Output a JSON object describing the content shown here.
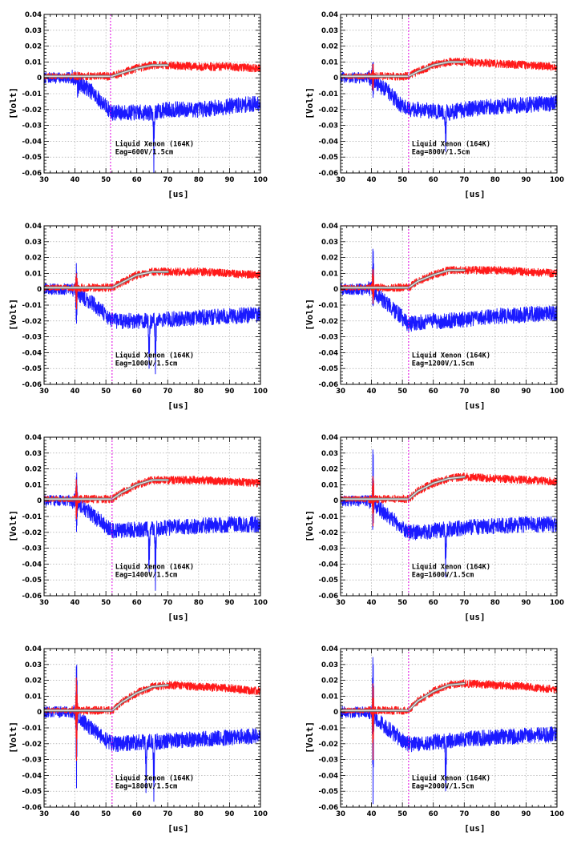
{
  "chart_data": [
    {
      "type": "line",
      "xlabel": "[us]",
      "ylabel": "[Volt]",
      "xlim": [
        30,
        100
      ],
      "ylim": [
        -0.06,
        0.04
      ],
      "grid": true,
      "x_ticks": [
        "30",
        "40",
        "50",
        "60",
        "70",
        "80",
        "90",
        "100"
      ],
      "y_ticks": [
        "0.04",
        "0.03",
        "0.02",
        "0.01",
        "0",
        "-0.01",
        "-0.02",
        "-0.03",
        "-0.04",
        "-0.05",
        "-0.06"
      ],
      "annotation": [
        "Liquid Xenon (164K)",
        "Eag=600V/1.5cm"
      ],
      "marker_x": 51.5,
      "series": [
        {
          "color": "#1a1aff",
          "x": [
            30,
            40,
            42,
            45,
            50,
            52,
            55,
            60,
            65,
            70,
            80,
            90,
            100
          ],
          "y": [
            0,
            0,
            -0.004,
            -0.008,
            -0.018,
            -0.022,
            -0.022,
            -0.022,
            -0.022,
            -0.02,
            -0.02,
            -0.018,
            -0.016
          ],
          "noise": 0.005,
          "spikes": [
            [
              41,
              -0.012,
              0.004
            ],
            [
              65.5,
              -0.035,
              -0.012
            ]
          ]
        },
        {
          "color": "#ff1a1a",
          "x": [
            30,
            52,
            55,
            60,
            65,
            70,
            80,
            90,
            100
          ],
          "y": [
            0.001,
            0.001,
            0.003,
            0.006,
            0.008,
            0.008,
            0.007,
            0.007,
            0.006
          ],
          "noise": 0.0025,
          "spikes": []
        }
      ],
      "fit": {
        "x": [
          30,
          52,
          55,
          60,
          65,
          70
        ],
        "y": [
          0.001,
          0.001,
          0.003,
          0.006,
          0.008,
          0.008
        ]
      }
    },
    {
      "type": "line",
      "xlabel": "[us]",
      "ylabel": "[Volt]",
      "xlim": [
        30,
        100
      ],
      "ylim": [
        -0.06,
        0.04
      ],
      "grid": true,
      "x_ticks": [
        "30",
        "40",
        "50",
        "60",
        "70",
        "80",
        "90",
        "100"
      ],
      "y_ticks": [
        "0.04",
        "0.03",
        "0.02",
        "0.01",
        "0",
        "-0.01",
        "-0.02",
        "-0.03",
        "-0.04",
        "-0.05",
        "-0.06"
      ],
      "annotation": [
        "Liquid Xenon (164K)",
        "Eag=800V/1.5cm"
      ],
      "marker_x": 52,
      "series": [
        {
          "color": "#1a1aff",
          "x": [
            30,
            40,
            42,
            45,
            50,
            52,
            55,
            60,
            65,
            70,
            80,
            90,
            100
          ],
          "y": [
            0,
            0,
            -0.004,
            -0.008,
            -0.018,
            -0.02,
            -0.02,
            -0.021,
            -0.022,
            -0.02,
            -0.018,
            -0.017,
            -0.016
          ],
          "noise": 0.005,
          "spikes": [
            [
              40.5,
              0.016,
              -0.012
            ],
            [
              64,
              -0.03,
              -0.01
            ]
          ]
        },
        {
          "color": "#ff1a1a",
          "x": [
            30,
            52,
            55,
            60,
            65,
            70,
            80,
            90,
            100
          ],
          "y": [
            0.001,
            0.001,
            0.004,
            0.008,
            0.01,
            0.01,
            0.009,
            0.008,
            0.007
          ],
          "noise": 0.0025,
          "spikes": [
            [
              40.5,
              0.012,
              -0.01
            ]
          ]
        }
      ],
      "fit": {
        "x": [
          30,
          52,
          55,
          60,
          65,
          70
        ],
        "y": [
          0.001,
          0.001,
          0.004,
          0.008,
          0.01,
          0.01
        ]
      }
    },
    {
      "type": "line",
      "xlabel": "[us]",
      "ylabel": "[Volt]",
      "xlim": [
        30,
        100
      ],
      "ylim": [
        -0.06,
        0.04
      ],
      "grid": true,
      "x_ticks": [
        "30",
        "40",
        "50",
        "60",
        "70",
        "80",
        "90",
        "100"
      ],
      "y_ticks": [
        "0.04",
        "0.03",
        "0.02",
        "0.01",
        "0",
        "-0.01",
        "-0.02",
        "-0.03",
        "-0.04",
        "-0.05",
        "-0.06"
      ],
      "annotation": [
        "Liquid Xenon (164K)",
        "Eag=1000V/1.5cm"
      ],
      "marker_x": 52,
      "series": [
        {
          "color": "#1a1aff",
          "x": [
            30,
            40,
            42,
            45,
            50,
            52,
            55,
            60,
            65,
            70,
            80,
            90,
            100
          ],
          "y": [
            0,
            0,
            -0.004,
            -0.008,
            -0.016,
            -0.02,
            -0.02,
            -0.02,
            -0.02,
            -0.019,
            -0.018,
            -0.017,
            -0.016
          ],
          "noise": 0.005,
          "spikes": [
            [
              40.5,
              0.017,
              -0.022
            ],
            [
              64,
              -0.032,
              -0.012
            ],
            [
              66,
              -0.036,
              -0.013
            ]
          ]
        },
        {
          "color": "#ff1a1a",
          "x": [
            30,
            52,
            55,
            60,
            65,
            70,
            80,
            90,
            100
          ],
          "y": [
            0.001,
            0.001,
            0.004,
            0.009,
            0.011,
            0.011,
            0.011,
            0.01,
            0.009
          ],
          "noise": 0.0025,
          "spikes": [
            [
              40.5,
              0.01,
              -0.015
            ]
          ]
        }
      ],
      "fit": {
        "x": [
          30,
          52,
          55,
          60,
          65,
          70
        ],
        "y": [
          0.001,
          0.001,
          0.004,
          0.009,
          0.011,
          0.011
        ]
      }
    },
    {
      "type": "line",
      "xlabel": "[us]",
      "ylabel": "[Volt]",
      "xlim": [
        30,
        100
      ],
      "ylim": [
        -0.06,
        0.04
      ],
      "grid": true,
      "x_ticks": [
        "30",
        "40",
        "50",
        "60",
        "70",
        "80",
        "90",
        "100"
      ],
      "y_ticks": [
        "0.04",
        "0.03",
        "0.02",
        "0.01",
        "0",
        "-0.01",
        "-0.02",
        "-0.03",
        "-0.04",
        "-0.05",
        "-0.06"
      ],
      "annotation": [
        "Liquid Xenon (164K)",
        "Eag=1200V/1.5cm"
      ],
      "marker_x": 52,
      "series": [
        {
          "color": "#1a1aff",
          "x": [
            30,
            40,
            42,
            45,
            50,
            52,
            55,
            60,
            65,
            70,
            80,
            90,
            100
          ],
          "y": [
            0,
            0,
            -0.004,
            -0.009,
            -0.018,
            -0.022,
            -0.021,
            -0.02,
            -0.02,
            -0.019,
            -0.017,
            -0.016,
            -0.015
          ],
          "noise": 0.005,
          "spikes": [
            [
              40.5,
              0.033,
              -0.012
            ]
          ]
        },
        {
          "color": "#ff1a1a",
          "x": [
            30,
            52,
            55,
            60,
            65,
            70,
            80,
            90,
            100
          ],
          "y": [
            0.001,
            0.001,
            0.005,
            0.009,
            0.012,
            0.012,
            0.012,
            0.011,
            0.01
          ],
          "noise": 0.0025,
          "spikes": [
            [
              40.5,
              0.016,
              -0.012
            ]
          ]
        }
      ],
      "fit": {
        "x": [
          30,
          52,
          55,
          60,
          65,
          70
        ],
        "y": [
          0.001,
          0.001,
          0.005,
          0.009,
          0.012,
          0.012
        ]
      }
    },
    {
      "type": "line",
      "xlabel": "[us]",
      "ylabel": "[Volt]",
      "xlim": [
        30,
        100
      ],
      "ylim": [
        -0.06,
        0.04
      ],
      "grid": true,
      "x_ticks": [
        "30",
        "40",
        "50",
        "60",
        "70",
        "80",
        "90",
        "100"
      ],
      "y_ticks": [
        "0.04",
        "0.03",
        "0.02",
        "0.01",
        "0",
        "-0.01",
        "-0.02",
        "-0.03",
        "-0.04",
        "-0.05",
        "-0.06"
      ],
      "annotation": [
        "Liquid Xenon (164K)",
        "Eag=1400V/1.5cm"
      ],
      "marker_x": 52,
      "series": [
        {
          "color": "#1a1aff",
          "x": [
            30,
            40,
            42,
            45,
            50,
            52,
            55,
            60,
            65,
            70,
            80,
            90,
            100
          ],
          "y": [
            0,
            0,
            -0.004,
            -0.008,
            -0.016,
            -0.019,
            -0.019,
            -0.018,
            -0.018,
            -0.017,
            -0.016,
            -0.015,
            -0.015
          ],
          "noise": 0.005,
          "spikes": [
            [
              40.5,
              0.025,
              -0.022
            ],
            [
              64,
              -0.033,
              -0.012
            ],
            [
              66,
              -0.038,
              -0.014
            ]
          ]
        },
        {
          "color": "#ff1a1a",
          "x": [
            30,
            52,
            55,
            60,
            65,
            70,
            80,
            90,
            100
          ],
          "y": [
            0.001,
            0.001,
            0.005,
            0.01,
            0.013,
            0.013,
            0.013,
            0.012,
            0.011
          ],
          "noise": 0.0025,
          "spikes": [
            [
              40.5,
              0.013,
              -0.015
            ]
          ]
        }
      ],
      "fit": {
        "x": [
          30,
          52,
          55,
          60,
          65,
          70
        ],
        "y": [
          0.001,
          0.001,
          0.005,
          0.01,
          0.013,
          0.013
        ]
      }
    },
    {
      "type": "line",
      "xlabel": "[us]",
      "ylabel": "[Volt]",
      "xlim": [
        30,
        100
      ],
      "ylim": [
        -0.06,
        0.04
      ],
      "grid": true,
      "x_ticks": [
        "30",
        "40",
        "50",
        "60",
        "70",
        "80",
        "90",
        "100"
      ],
      "y_ticks": [
        "0.04",
        "0.03",
        "0.02",
        "0.01",
        "0",
        "-0.01",
        "-0.02",
        "-0.03",
        "-0.04",
        "-0.05",
        "-0.06"
      ],
      "annotation": [
        "Liquid Xenon (164K)",
        "Eag=1600V/1.5cm"
      ],
      "marker_x": 52,
      "series": [
        {
          "color": "#1a1aff",
          "x": [
            30,
            40,
            42,
            45,
            50,
            52,
            55,
            60,
            65,
            70,
            80,
            90,
            100
          ],
          "y": [
            0,
            0,
            -0.004,
            -0.009,
            -0.017,
            -0.02,
            -0.02,
            -0.019,
            -0.018,
            -0.017,
            -0.016,
            -0.015,
            -0.015
          ],
          "noise": 0.005,
          "spikes": [
            [
              40.5,
              0.039,
              -0.02
            ],
            [
              64,
              -0.032,
              -0.012
            ]
          ]
        },
        {
          "color": "#ff1a1a",
          "x": [
            30,
            52,
            55,
            60,
            65,
            70,
            80,
            90,
            100
          ],
          "y": [
            0.001,
            0.001,
            0.006,
            0.011,
            0.014,
            0.015,
            0.014,
            0.013,
            0.012
          ],
          "noise": 0.0025,
          "spikes": [
            [
              40.5,
              0.018,
              -0.015
            ]
          ]
        }
      ],
      "fit": {
        "x": [
          30,
          52,
          55,
          60,
          65,
          70
        ],
        "y": [
          0.001,
          0.001,
          0.006,
          0.011,
          0.014,
          0.015
        ]
      }
    },
    {
      "type": "line",
      "xlabel": "[us]",
      "ylabel": "[Volt]",
      "xlim": [
        30,
        100
      ],
      "ylim": [
        -0.06,
        0.04
      ],
      "grid": true,
      "x_ticks": [
        "30",
        "40",
        "50",
        "60",
        "70",
        "80",
        "90",
        "100"
      ],
      "y_ticks": [
        "0.04",
        "0.03",
        "0.02",
        "0.01",
        "0",
        "-0.01",
        "-0.02",
        "-0.03",
        "-0.04",
        "-0.05",
        "-0.06"
      ],
      "annotation": [
        "Liquid Xenon (164K)",
        "Eag=1800V/1.5cm"
      ],
      "marker_x": 52,
      "series": [
        {
          "color": "#1a1aff",
          "x": [
            30,
            40,
            42,
            45,
            50,
            52,
            55,
            60,
            65,
            70,
            80,
            90,
            100
          ],
          "y": [
            0,
            0,
            -0.005,
            -0.01,
            -0.018,
            -0.02,
            -0.02,
            -0.019,
            -0.019,
            -0.018,
            -0.017,
            -0.016,
            -0.015
          ],
          "noise": 0.005,
          "spikes": [
            [
              40.5,
              0.04,
              -0.042
            ],
            [
              63,
              -0.03,
              -0.01
            ],
            [
              65.5,
              -0.035,
              -0.013
            ]
          ]
        },
        {
          "color": "#ff1a1a",
          "x": [
            30,
            52,
            55,
            60,
            65,
            70,
            80,
            90,
            100
          ],
          "y": [
            0.001,
            0.001,
            0.006,
            0.012,
            0.016,
            0.017,
            0.016,
            0.015,
            0.013
          ],
          "noise": 0.0025,
          "spikes": [
            [
              40.5,
              0.022,
              -0.03
            ]
          ]
        }
      ],
      "fit": {
        "x": [
          30,
          52,
          55,
          60,
          65,
          70
        ],
        "y": [
          0.001,
          0.001,
          0.006,
          0.012,
          0.016,
          0.017
        ]
      }
    },
    {
      "type": "line",
      "xlabel": "[us]",
      "ylabel": "[Volt]",
      "xlim": [
        30,
        100
      ],
      "ylim": [
        -0.06,
        0.04
      ],
      "grid": true,
      "x_ticks": [
        "30",
        "40",
        "50",
        "60",
        "70",
        "80",
        "90",
        "100"
      ],
      "y_ticks": [
        "0.04",
        "0.03",
        "0.02",
        "0.01",
        "0",
        "-0.01",
        "-0.02",
        "-0.03",
        "-0.04",
        "-0.05",
        "-0.06"
      ],
      "annotation": [
        "Liquid Xenon (164K)",
        "Eag=2000V/1.5cm"
      ],
      "marker_x": 52,
      "series": [
        {
          "color": "#1a1aff",
          "x": [
            30,
            40,
            42,
            45,
            50,
            52,
            55,
            60,
            65,
            70,
            80,
            90,
            100
          ],
          "y": [
            0,
            0,
            -0.005,
            -0.01,
            -0.018,
            -0.02,
            -0.02,
            -0.019,
            -0.018,
            -0.017,
            -0.016,
            -0.015,
            -0.014
          ],
          "noise": 0.005,
          "spikes": [
            [
              40.5,
              0.04,
              -0.053
            ],
            [
              64,
              -0.037,
              -0.013
            ]
          ]
        },
        {
          "color": "#ff1a1a",
          "x": [
            30,
            52,
            55,
            60,
            65,
            70,
            80,
            90,
            100
          ],
          "y": [
            0.001,
            0.001,
            0.007,
            0.013,
            0.017,
            0.018,
            0.017,
            0.016,
            0.014
          ],
          "noise": 0.0025,
          "spikes": [
            [
              40.5,
              0.02,
              -0.03
            ]
          ]
        }
      ],
      "fit": {
        "x": [
          30,
          52,
          55,
          60,
          65,
          70
        ],
        "y": [
          0.001,
          0.001,
          0.007,
          0.013,
          0.017,
          0.018
        ]
      }
    }
  ]
}
